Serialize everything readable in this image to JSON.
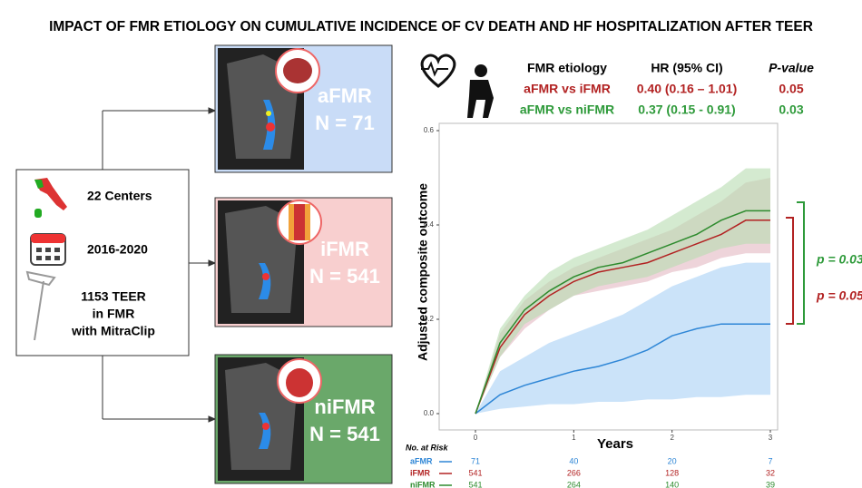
{
  "title": "IMPACT OF FMR ETIOLOGY ON CUMULATIVE INCIDENCE OF CV DEATH AND HF HOSPITALIZATION AFTER TEER",
  "study": {
    "centers": "22 Centers",
    "period": "2016-2020",
    "population": [
      "1153 TEER",
      "in FMR",
      "with MitraClip"
    ]
  },
  "groups": [
    {
      "name": "aFMR",
      "n": "N = 71"
    },
    {
      "name": "iFMR",
      "n": "N = 541"
    },
    {
      "name": "niFMR",
      "n": "N = 541"
    }
  ],
  "hr_table": {
    "headers": [
      "FMR etiology",
      "HR (95% CI)",
      "P-value"
    ],
    "rows": [
      [
        "aFMR vs iFMR",
        "0.40 (0.16 – 1.01)",
        "0.05"
      ],
      [
        "aFMR vs niFMR",
        "0.37 (0.15 - 0.91)",
        "0.03"
      ]
    ]
  },
  "chart_data": {
    "type": "line",
    "y_label": "Adjusted composite outcome",
    "x_label": "Years",
    "x": [
      0,
      0.25,
      0.5,
      0.75,
      1,
      1.25,
      1.5,
      1.75,
      2,
      2.25,
      2.5,
      2.75,
      3
    ],
    "xlim": [
      0,
      3
    ],
    "xticks": [
      0,
      1,
      2,
      3
    ],
    "ylim": [
      0,
      0.6
    ],
    "yticks": [
      {
        "value": 0,
        "label": "0.0"
      },
      0.2,
      0.4,
      0.6
    ],
    "series": [
      {
        "name": "aFMR",
        "color": "#2e86d6",
        "band_color": "#a9d0f5",
        "values": [
          0,
          0.04,
          0.06,
          0.075,
          0.09,
          0.1,
          0.115,
          0.135,
          0.165,
          0.18,
          0.19,
          0.19,
          0.19
        ],
        "lower": [
          0,
          0.01,
          0.015,
          0.02,
          0.02,
          0.025,
          0.025,
          0.03,
          0.03,
          0.035,
          0.035,
          0.04,
          0.04
        ],
        "upper": [
          0,
          0.09,
          0.12,
          0.15,
          0.17,
          0.19,
          0.21,
          0.24,
          0.27,
          0.29,
          0.31,
          0.32,
          0.32
        ]
      },
      {
        "name": "iFMR",
        "color": "#b22222",
        "band_color": "#e3b7c2",
        "values": [
          0,
          0.14,
          0.21,
          0.25,
          0.28,
          0.3,
          0.31,
          0.32,
          0.34,
          0.36,
          0.38,
          0.41,
          0.41
        ],
        "lower": [
          0,
          0.12,
          0.18,
          0.22,
          0.25,
          0.26,
          0.27,
          0.28,
          0.3,
          0.31,
          0.33,
          0.34,
          0.34
        ],
        "upper": [
          0,
          0.17,
          0.24,
          0.28,
          0.31,
          0.33,
          0.35,
          0.37,
          0.39,
          0.42,
          0.45,
          0.49,
          0.5
        ]
      },
      {
        "name": "niFMR",
        "color": "#2e8b2e",
        "band_color": "#b8dcb0",
        "values": [
          0,
          0.15,
          0.22,
          0.26,
          0.29,
          0.31,
          0.32,
          0.34,
          0.36,
          0.38,
          0.41,
          0.43,
          0.43
        ],
        "lower": [
          0,
          0.12,
          0.19,
          0.22,
          0.25,
          0.27,
          0.28,
          0.29,
          0.31,
          0.33,
          0.35,
          0.36,
          0.36
        ],
        "upper": [
          0,
          0.18,
          0.25,
          0.3,
          0.33,
          0.35,
          0.37,
          0.39,
          0.42,
          0.45,
          0.48,
          0.52,
          0.52
        ]
      }
    ],
    "annotations": [
      "p = 0.03",
      "p = 0.05"
    ],
    "risk_table": {
      "label": "No. at Risk",
      "rows": [
        {
          "name": "aFMR",
          "color": "#2e86d6",
          "counts": [
            "71",
            "40",
            "20",
            "7"
          ]
        },
        {
          "name": "iFMR",
          "color": "#b22222",
          "counts": [
            "541",
            "266",
            "128",
            "32"
          ]
        },
        {
          "name": "niFMR",
          "color": "#2e8b2e",
          "counts": [
            "541",
            "264",
            "140",
            "39"
          ]
        }
      ]
    }
  }
}
